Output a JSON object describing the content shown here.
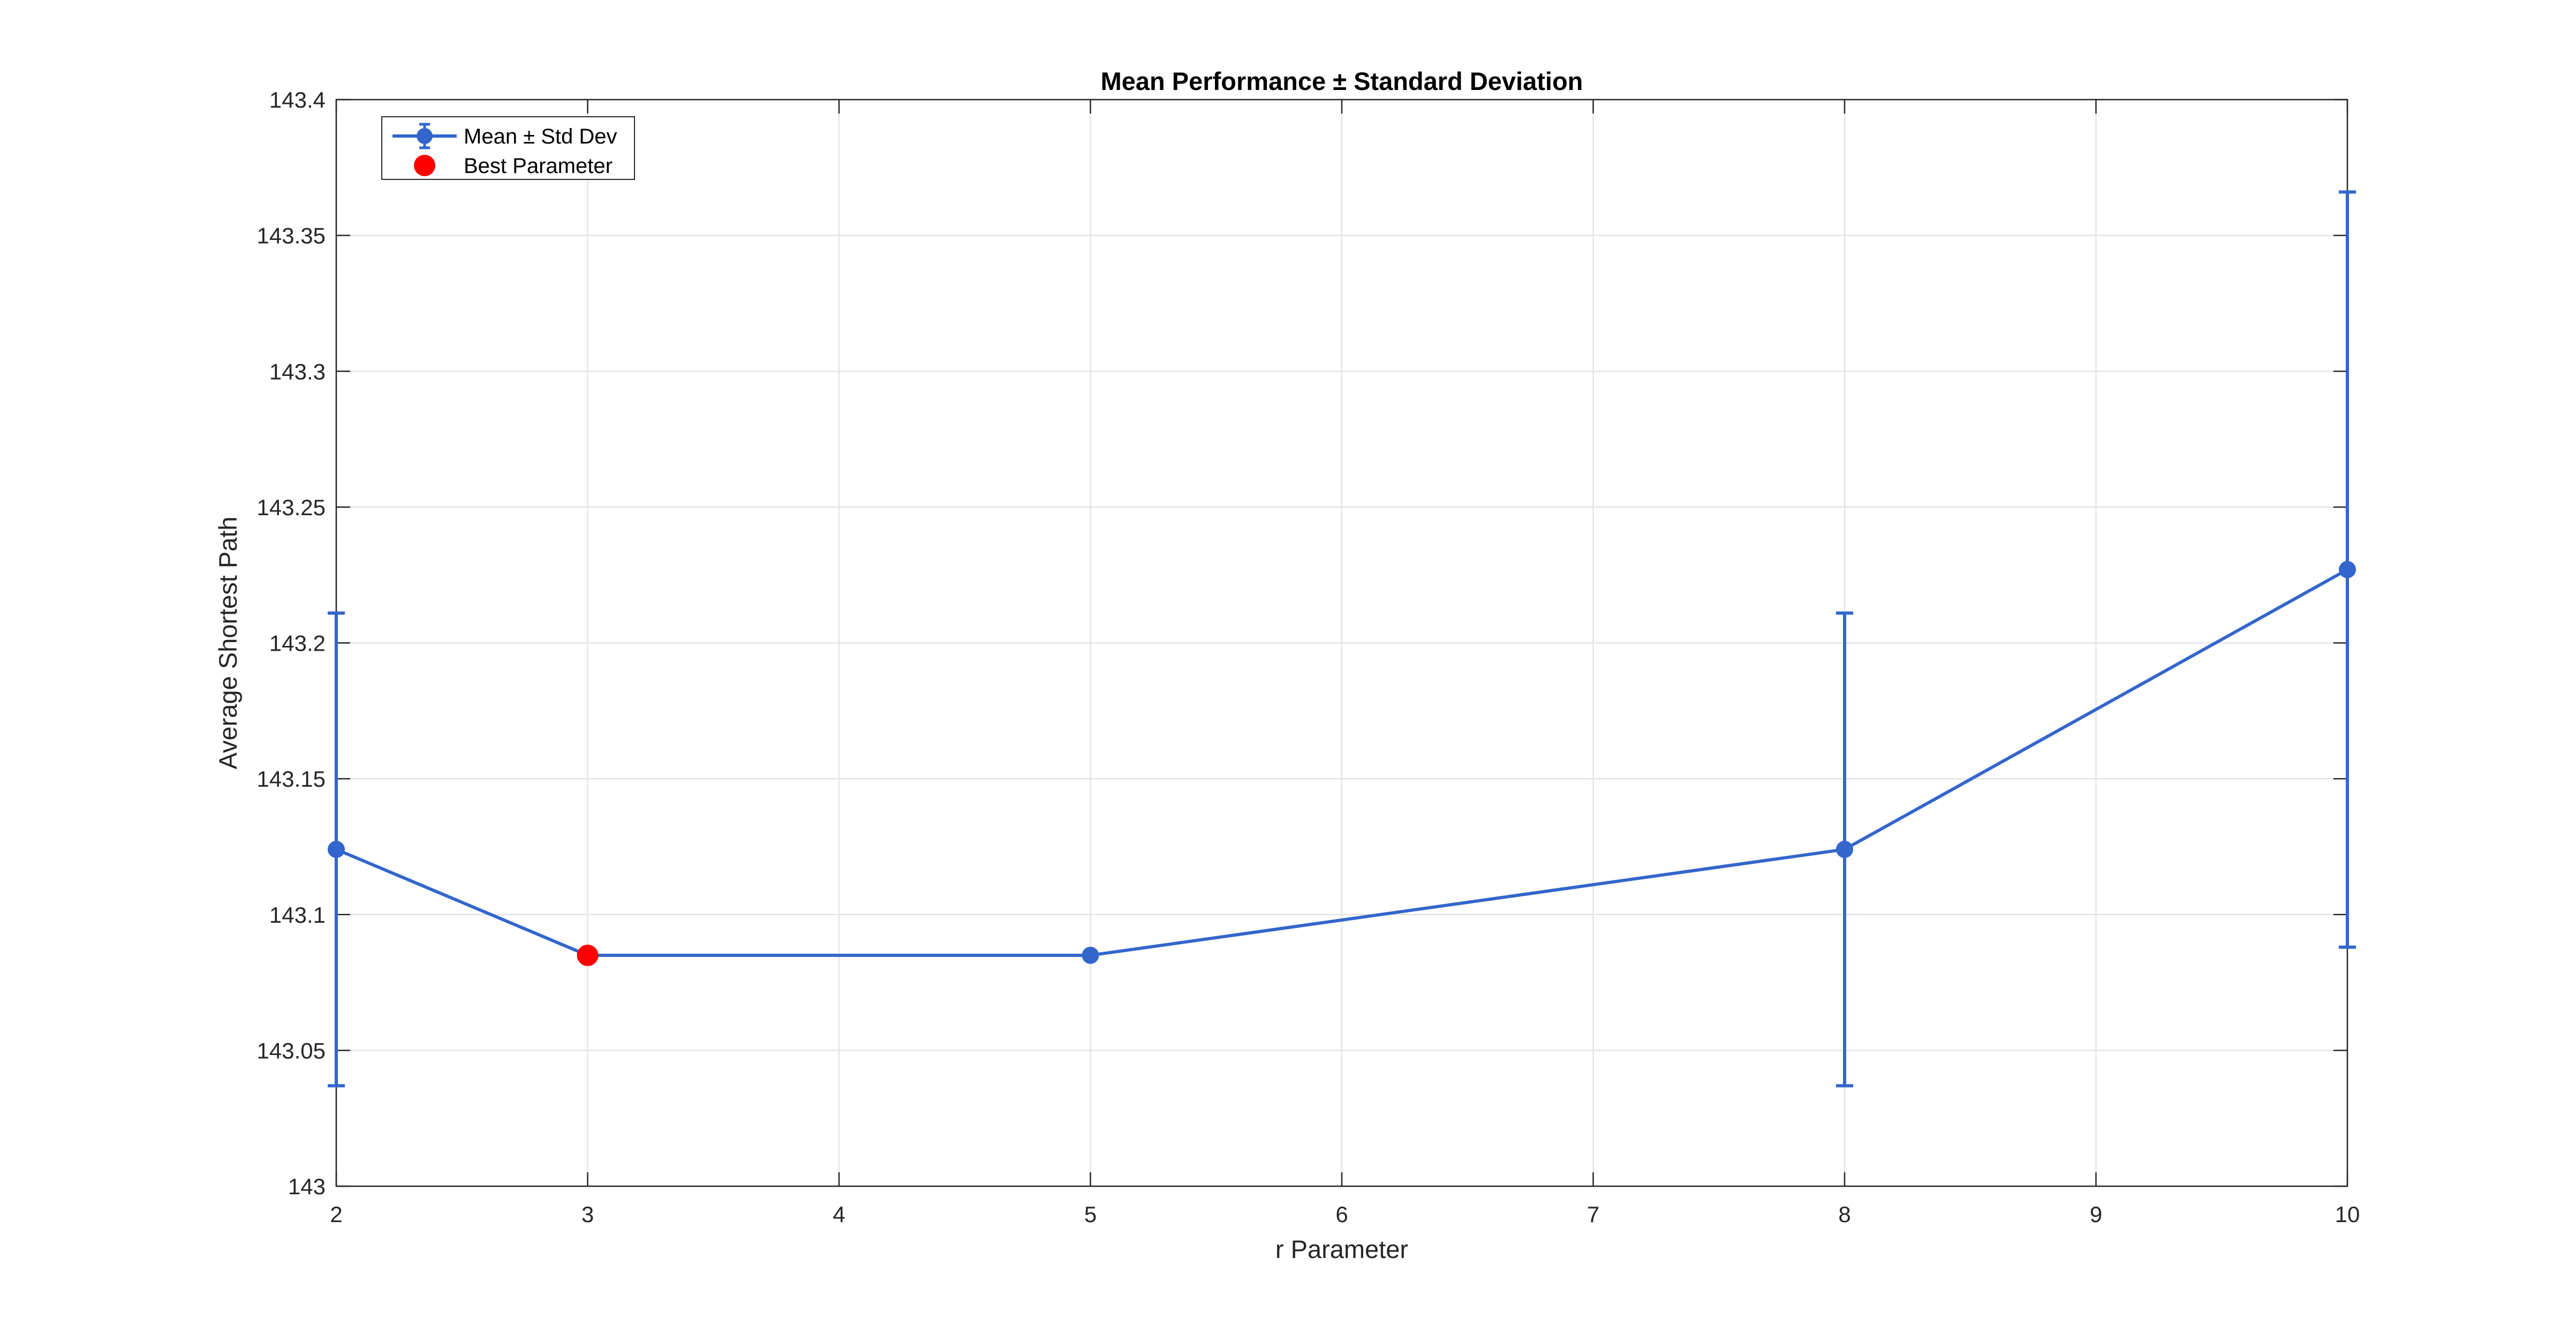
{
  "chart_data": {
    "type": "line",
    "title": "Mean Performance ± Standard Deviation",
    "xlabel": "r Parameter",
    "ylabel": "Average Shortest Path",
    "x": [
      2,
      3,
      5,
      8,
      10
    ],
    "xlim": [
      2,
      10
    ],
    "ylim": [
      143,
      143.4
    ],
    "x_ticks": [
      2,
      3,
      4,
      5,
      6,
      7,
      8,
      9,
      10
    ],
    "y_ticks": [
      143,
      143.05,
      143.1,
      143.15,
      143.2,
      143.25,
      143.3,
      143.35,
      143.4
    ],
    "x_tick_labels": [
      "2",
      "3",
      "4",
      "5",
      "6",
      "7",
      "8",
      "9",
      "10"
    ],
    "y_tick_labels": [
      "143",
      "143.05",
      "143.1",
      "143.15",
      "143.2",
      "143.25",
      "143.3",
      "143.35",
      "143.4"
    ],
    "grid": true,
    "legend_position": "top-left",
    "series": [
      {
        "name": "Mean ± Std Dev",
        "color": "#3366cc",
        "x": [
          2,
          3,
          5,
          8,
          10
        ],
        "values": [
          143.124,
          143.085,
          143.085,
          143.124,
          143.227
        ],
        "error": [
          0.087,
          0.0,
          0.0,
          0.087,
          0.139
        ]
      },
      {
        "name": "Best Parameter",
        "color": "#ff0000",
        "x": [
          3
        ],
        "values": [
          143.085
        ]
      }
    ]
  }
}
